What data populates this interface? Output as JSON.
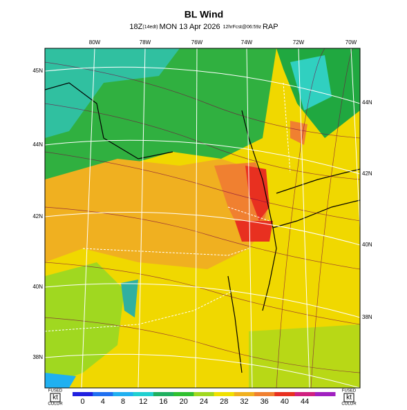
{
  "header": {
    "title": "BL Wind",
    "time": "18Z",
    "local": "(14edt)",
    "date": "MON 13 Apr 2026",
    "fcst": "12hrFcst@06:59z",
    "model": "RAP"
  },
  "map": {
    "lon_labels": [
      "80W",
      "78W",
      "76W",
      "74W",
      "72W",
      "70W"
    ],
    "lat_labels_left": [
      "45N",
      "44N",
      "42N",
      "40N",
      "38N"
    ],
    "lat_labels_right": [
      "44N",
      "42N",
      "40N",
      "38N"
    ]
  },
  "colorbar": {
    "ticks": [
      0,
      4,
      8,
      12,
      16,
      20,
      24,
      28,
      32,
      36,
      40,
      44
    ],
    "colors": [
      "#2020e0",
      "#2070f0",
      "#20b0f0",
      "#20d0d0",
      "#20b060",
      "#30c030",
      "#a0d820",
      "#f0e000",
      "#f0b020",
      "#f08030",
      "#e83020",
      "#d02080",
      "#a020c0"
    ],
    "left_note": [
      "FUSED",
      "kt",
      "COLOR"
    ],
    "right_note": [
      "FUSED",
      "kt",
      "COLOR"
    ]
  }
}
